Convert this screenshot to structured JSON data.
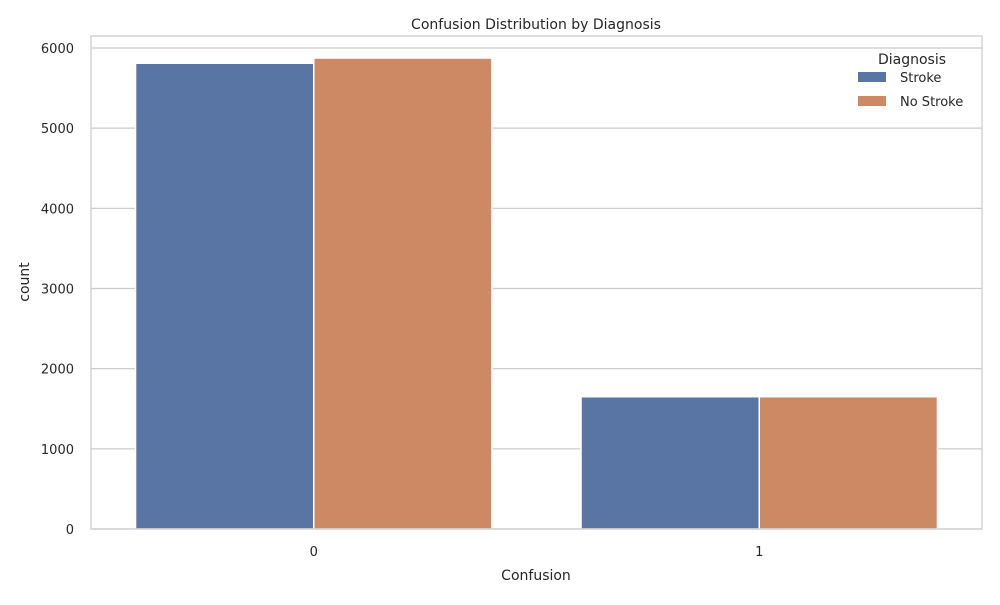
{
  "chart_data": {
    "type": "bar",
    "title": "Confusion Distribution by Diagnosis",
    "xlabel": "Confusion",
    "ylabel": "count",
    "categories": [
      "0",
      "1"
    ],
    "series": [
      {
        "name": "Stroke",
        "color": "#5975a4",
        "values": [
          5810,
          1650
        ]
      },
      {
        "name": "No Stroke",
        "color": "#cc8963",
        "values": [
          5875,
          1650
        ]
      }
    ],
    "ylim": [
      0,
      6150
    ],
    "yticks": [
      0,
      1000,
      2000,
      3000,
      4000,
      5000,
      6000
    ],
    "grid": true,
    "legend": {
      "title": "Diagnosis",
      "placement": "top-right"
    }
  }
}
